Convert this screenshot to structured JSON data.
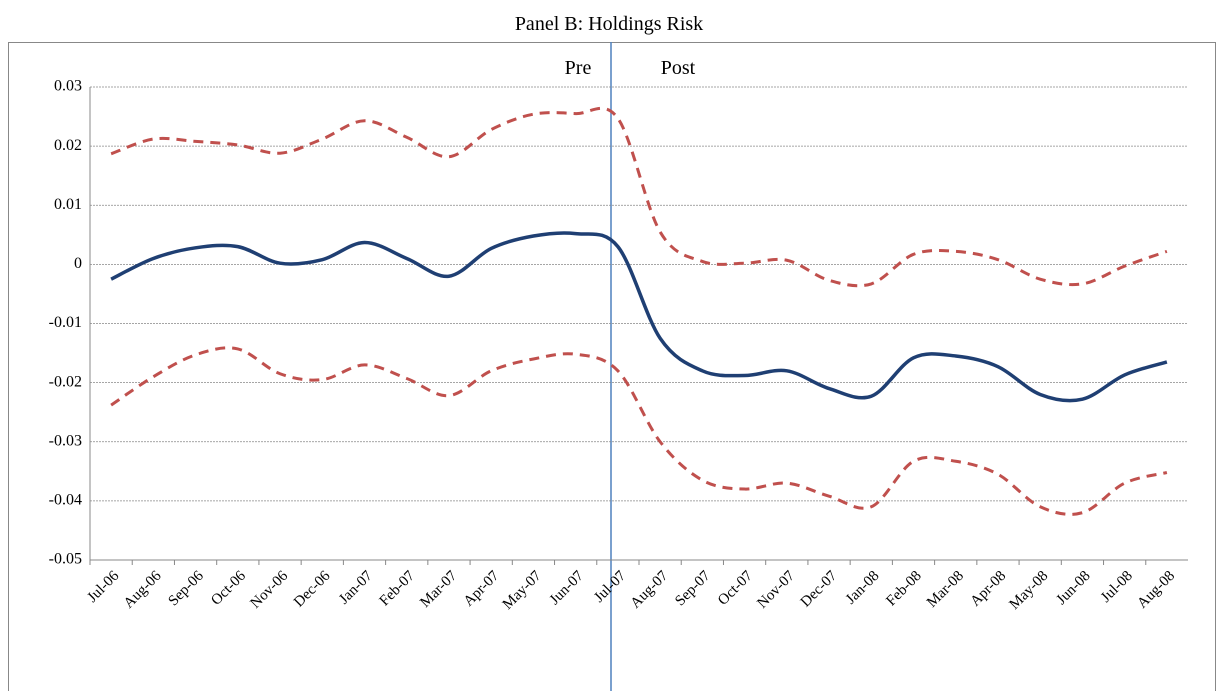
{
  "chart_data": {
    "type": "line",
    "title": "Panel B: Holdings Risk",
    "annotations": [
      "Pre",
      "Post"
    ],
    "categories": [
      "Jul-06",
      "Aug-06",
      "Sep-06",
      "Oct-06",
      "Nov-06",
      "Dec-06",
      "Jan-07",
      "Feb-07",
      "Mar-07",
      "Apr-07",
      "May-07",
      "Jun-07",
      "Jul-07",
      "Aug-07",
      "Sep-07",
      "Oct-07",
      "Nov-07",
      "Dec-07",
      "Jan-08",
      "Feb-08",
      "Mar-08",
      "Apr-08",
      "May-08",
      "Jun-08",
      "Jul-08",
      "Aug-08"
    ],
    "series": [
      {
        "color": "#c0504d",
        "dashed": true,
        "values": [
          0.0187,
          0.0212,
          0.0208,
          0.0202,
          0.0188,
          0.0212,
          0.0243,
          0.0215,
          0.0182,
          0.0228,
          0.0254,
          0.0255,
          0.0247,
          0.0055,
          0.0005,
          0.0002,
          0.0007,
          -0.0027,
          -0.0033,
          0.0017,
          0.0022,
          0.0008,
          -0.0025,
          -0.0033,
          -0.0003,
          0.0022
        ]
      },
      {
        "color": "#1f3f73",
        "dashed": false,
        "values": [
          -0.0025,
          0.001,
          0.0028,
          0.003,
          0.0002,
          0.0008,
          0.0037,
          0.001,
          -0.002,
          0.0027,
          0.0048,
          0.0052,
          0.003,
          -0.0125,
          -0.018,
          -0.0188,
          -0.018,
          -0.021,
          -0.0223,
          -0.0158,
          -0.0155,
          -0.0173,
          -0.022,
          -0.0228,
          -0.0187,
          -0.0165
        ]
      },
      {
        "color": "#c0504d",
        "dashed": true,
        "values": [
          -0.0238,
          -0.019,
          -0.0153,
          -0.0143,
          -0.0185,
          -0.0195,
          -0.017,
          -0.0193,
          -0.0222,
          -0.018,
          -0.016,
          -0.0152,
          -0.018,
          -0.03,
          -0.0365,
          -0.038,
          -0.037,
          -0.0392,
          -0.041,
          -0.0333,
          -0.0333,
          -0.0355,
          -0.041,
          -0.042,
          -0.037,
          -0.0352
        ]
      }
    ],
    "ylim": [
      -0.05,
      0.03
    ],
    "yticks": [
      0.03,
      0.02,
      0.01,
      0,
      -0.01,
      -0.02,
      -0.03,
      -0.04,
      -0.05
    ],
    "grid": true
  }
}
